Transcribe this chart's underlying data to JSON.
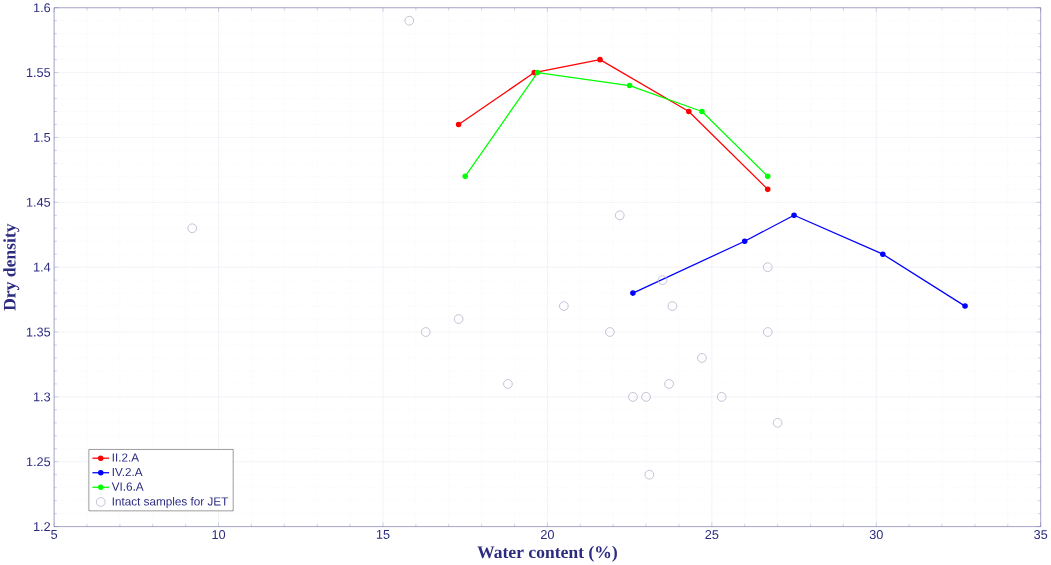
{
  "chart_data": {
    "type": "line",
    "xlabel": "Water content (%)",
    "ylabel": "Dry density",
    "xlim": [
      5,
      35
    ],
    "xticks": [
      5,
      10,
      15,
      20,
      25,
      30,
      35
    ],
    "ylim": [
      1.2,
      1.6
    ],
    "yticks": [
      1.2,
      1.25,
      1.3,
      1.35,
      1.4,
      1.45,
      1.5,
      1.55,
      1.6
    ],
    "grid": true,
    "legend": "bottom left",
    "marker": "circle",
    "series": [
      {
        "name": "II.2.A",
        "color": "#ff0000",
        "x": [
          17.3,
          19.6,
          21.6,
          24.3,
          26.7
        ],
        "values": [
          1.51,
          1.55,
          1.56,
          1.52,
          1.46
        ]
      },
      {
        "name": "IV.2.A",
        "color": "#0000ff",
        "x": [
          22.6,
          26.0,
          27.5,
          30.2,
          32.7
        ],
        "values": [
          1.38,
          1.42,
          1.44,
          1.41,
          1.37
        ]
      },
      {
        "name": "VI.6.A",
        "color": "#00ff00",
        "x": [
          17.5,
          19.7,
          22.5,
          24.7,
          26.7
        ],
        "values": [
          1.47,
          1.55,
          1.54,
          1.52,
          1.47
        ]
      },
      {
        "name": "Intact samples for JET",
        "type": "scatter",
        "color": "#b4b4cc",
        "x": [
          15.8,
          9.2,
          22.2,
          26.7,
          23.5,
          23.8,
          20.5,
          17.3,
          16.3,
          21.9,
          26.7,
          24.7,
          18.8,
          23.7,
          22.6,
          23.0,
          25.3,
          27.0,
          23.1
        ],
        "values": [
          1.59,
          1.43,
          1.44,
          1.4,
          1.39,
          1.37,
          1.37,
          1.36,
          1.35,
          1.35,
          1.35,
          1.33,
          1.31,
          1.31,
          1.3,
          1.3,
          1.3,
          1.28,
          1.24
        ]
      }
    ]
  }
}
